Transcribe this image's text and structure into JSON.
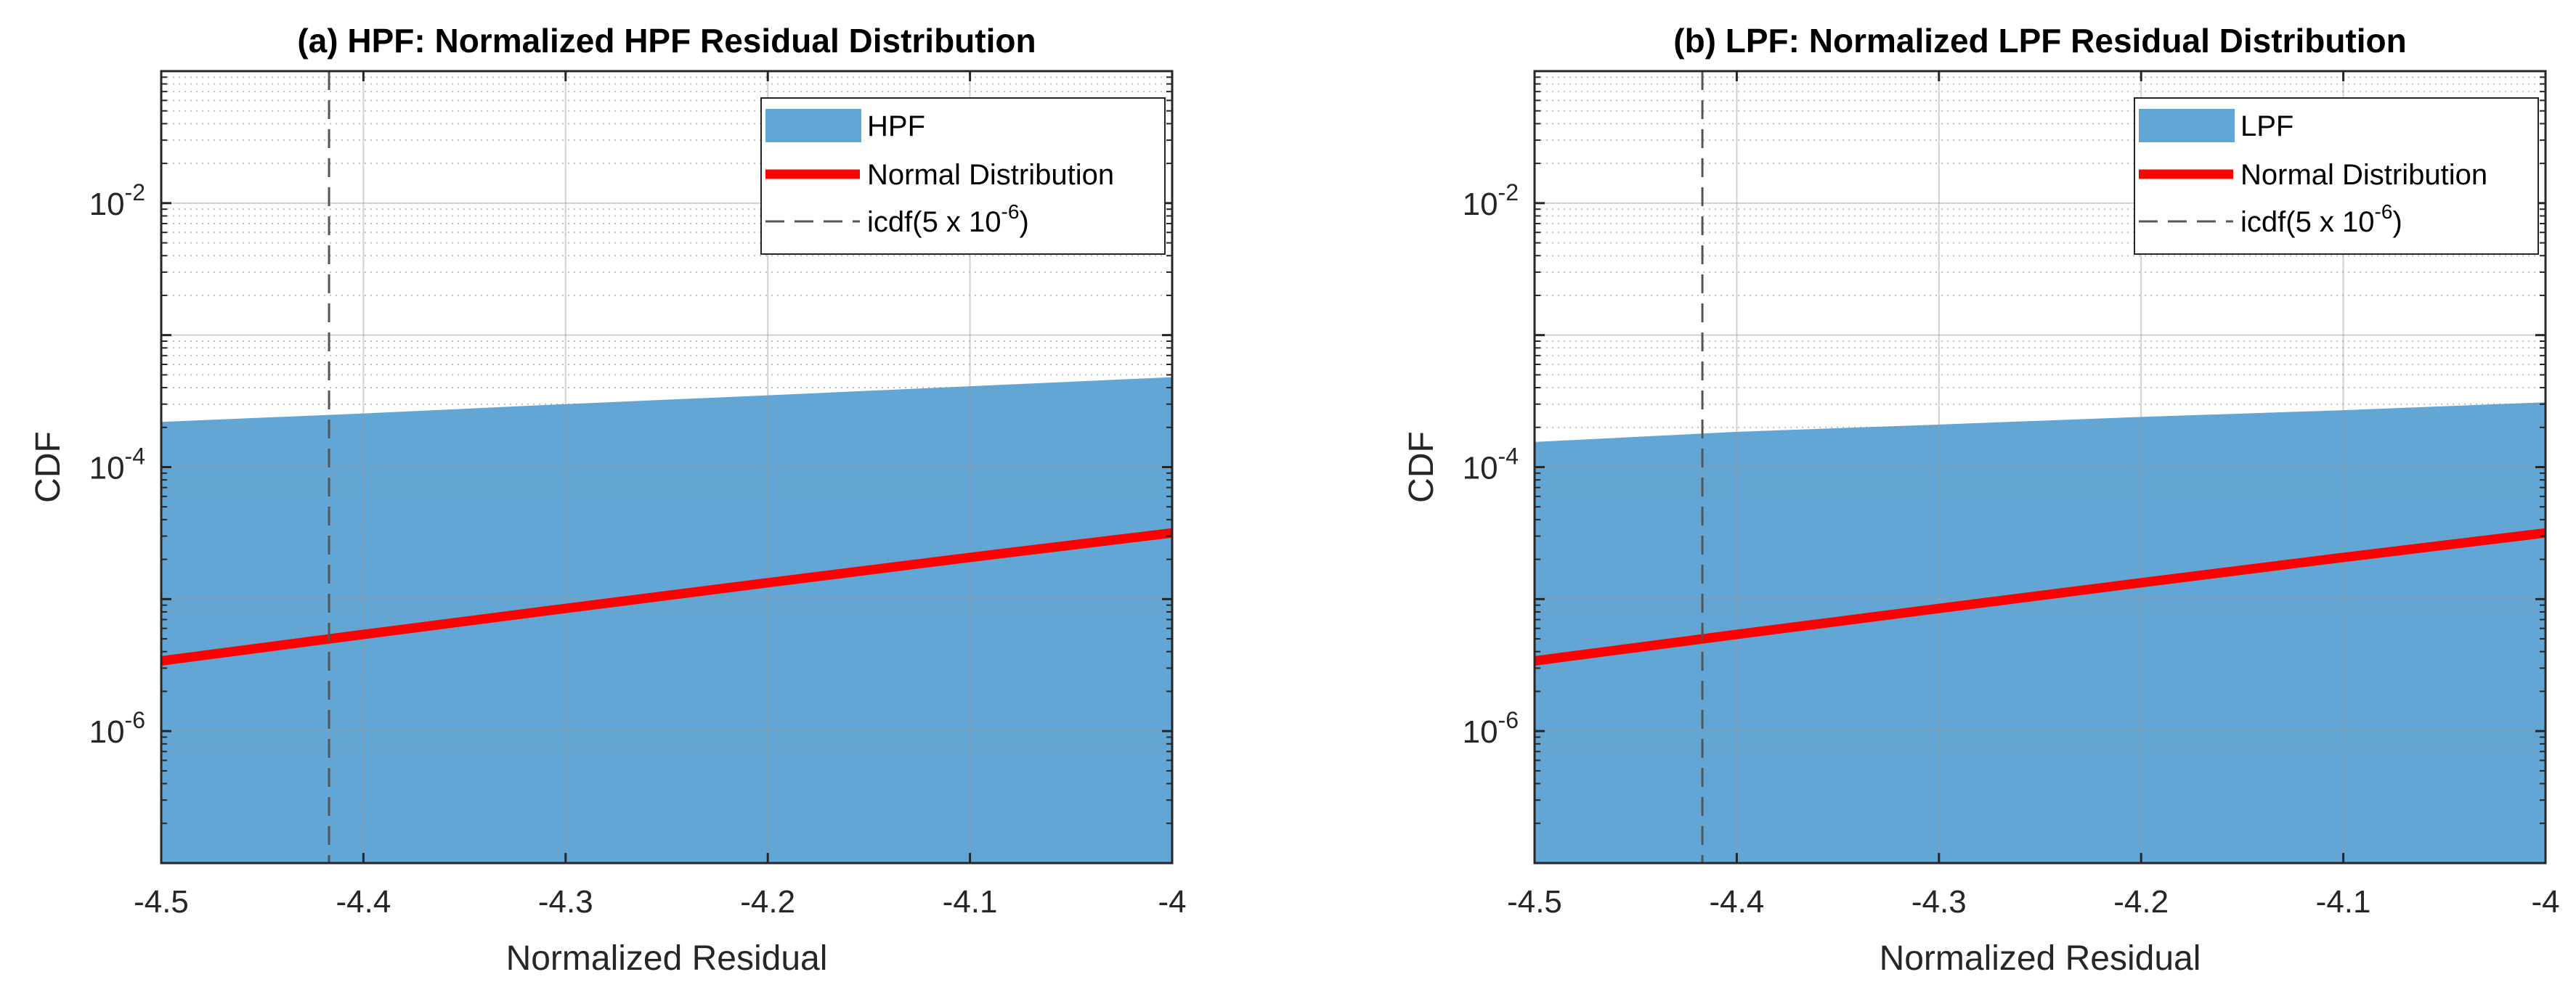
{
  "chart_data": [
    {
      "type": "area",
      "title": "(a) HPF: Normalized HPF Residual Distribution",
      "xlabel": "Normalized Residual",
      "ylabel": "CDF",
      "xlim": [
        -4.5,
        -4.0
      ],
      "ylim": [
        1e-07,
        0.1
      ],
      "yscale": "log",
      "grid": true,
      "minor_grid": true,
      "xticks": [
        -4.5,
        -4.4,
        -4.3,
        -4.2,
        -4.1,
        -4.0
      ],
      "xtick_labels": [
        "-4.5",
        "-4.4",
        "-4.3",
        "-4.2",
        "-4.1",
        "-4"
      ],
      "yticks": [
        {
          "value": 1e-06,
          "base": "10",
          "exp": "-6"
        },
        {
          "value": 0.0001,
          "base": "10",
          "exp": "-4"
        },
        {
          "value": 0.01,
          "base": "10",
          "exp": "-2"
        }
      ],
      "series": [
        {
          "name": "HPF",
          "kind": "area",
          "color": "#62a6d5",
          "x": [
            -4.5,
            -4.4,
            -4.3,
            -4.2,
            -4.1,
            -4.0
          ],
          "y": [
            0.00022,
            0.000255,
            0.0003,
            0.00035,
            0.00041,
            0.00048
          ]
        },
        {
          "name": "Normal Distribution",
          "kind": "line",
          "color": "#ff0000",
          "x": [
            -4.5,
            -4.4,
            -4.3,
            -4.2,
            -4.1,
            -4.0
          ],
          "y": [
            3.4e-06,
            5.4e-06,
            8.5e-06,
            1.33e-05,
            2.07e-05,
            3.17e-05
          ]
        },
        {
          "name": "icdf(5 x 10",
          "kind": "vline",
          "color": "#555555",
          "x_value": -4.417,
          "legend_sup": "-6",
          "legend_suffix": ")"
        }
      ],
      "legend": {
        "position": "top-right"
      }
    },
    {
      "type": "area",
      "title": "(b) LPF: Normalized LPF Residual Distribution",
      "xlabel": "Normalized Residual",
      "ylabel": "CDF",
      "xlim": [
        -4.5,
        -4.0
      ],
      "ylim": [
        1e-07,
        0.1
      ],
      "yscale": "log",
      "grid": true,
      "minor_grid": true,
      "xticks": [
        -4.5,
        -4.4,
        -4.3,
        -4.2,
        -4.1,
        -4.0
      ],
      "xtick_labels": [
        "-4.5",
        "-4.4",
        "-4.3",
        "-4.2",
        "-4.1",
        "-4"
      ],
      "yticks": [
        {
          "value": 1e-06,
          "base": "10",
          "exp": "-6"
        },
        {
          "value": 0.0001,
          "base": "10",
          "exp": "-4"
        },
        {
          "value": 0.01,
          "base": "10",
          "exp": "-2"
        }
      ],
      "series": [
        {
          "name": "LPF",
          "kind": "area",
          "color": "#62a6d5",
          "x": [
            -4.5,
            -4.4,
            -4.3,
            -4.2,
            -4.1,
            -4.0
          ],
          "y": [
            0.000155,
            0.000185,
            0.00021,
            0.00024,
            0.00027,
            0.00031
          ]
        },
        {
          "name": "Normal Distribution",
          "kind": "line",
          "color": "#ff0000",
          "x": [
            -4.5,
            -4.4,
            -4.3,
            -4.2,
            -4.1,
            -4.0
          ],
          "y": [
            3.4e-06,
            5.4e-06,
            8.5e-06,
            1.33e-05,
            2.07e-05,
            3.17e-05
          ]
        },
        {
          "name": "icdf(5 x 10",
          "kind": "vline",
          "color": "#555555",
          "x_value": -4.417,
          "legend_sup": "-6",
          "legend_suffix": ")"
        }
      ],
      "legend": {
        "position": "top-right"
      }
    }
  ]
}
